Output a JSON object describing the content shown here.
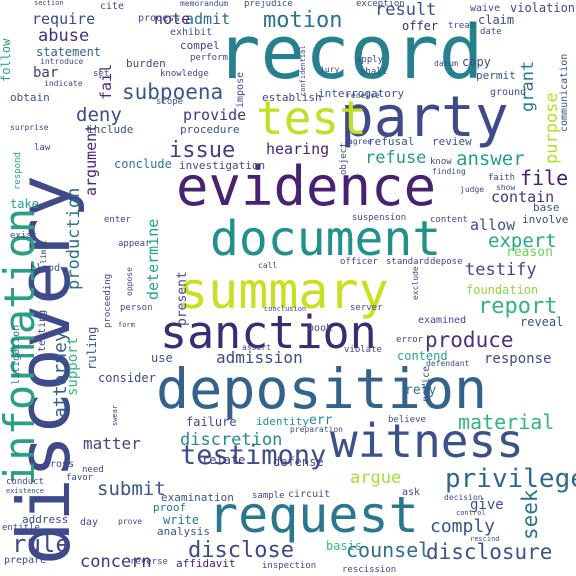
{
  "words": [
    {
      "text": "discovery",
      "color": "#3e4a89"
    },
    {
      "text": "record",
      "color": "#26818e"
    },
    {
      "text": "party",
      "color": "#3e4a89"
    },
    {
      "text": "test",
      "color": "#c2df23"
    },
    {
      "text": "evidence",
      "color": "#482173"
    },
    {
      "text": "document",
      "color": "#21918c"
    },
    {
      "text": "information",
      "color": "#2a9f86"
    },
    {
      "text": "summary",
      "color": "#c8e020"
    },
    {
      "text": "sanction",
      "color": "#3a2c73"
    },
    {
      "text": "deposition",
      "color": "#33638d"
    },
    {
      "text": "witness",
      "color": "#3b518b"
    },
    {
      "text": "request",
      "color": "#2a788e"
    },
    {
      "text": "testimony",
      "color": "#3e4c8a"
    },
    {
      "text": "privilege",
      "color": "#31688e"
    },
    {
      "text": "disclosure",
      "color": "#3b528b"
    },
    {
      "text": "disclose",
      "color": "#3f4788"
    },
    {
      "text": "motion",
      "color": "#2d708e"
    },
    {
      "text": "subpoena",
      "color": "#38588c"
    },
    {
      "text": "issue",
      "color": "#424086"
    },
    {
      "text": "answer",
      "color": "#20a386"
    },
    {
      "text": "report",
      "color": "#31b57b"
    },
    {
      "text": "produce",
      "color": "#46337e"
    },
    {
      "text": "rule",
      "color": "#3e4989"
    },
    {
      "text": "abuse",
      "color": "#46307e"
    },
    {
      "text": "deny",
      "color": "#3e4a89"
    },
    {
      "text": "attorney",
      "color": "#34608d"
    },
    {
      "text": "counsel",
      "color": "#2d718e"
    },
    {
      "text": "material",
      "color": "#34b679"
    },
    {
      "text": "seek",
      "color": "#2c728e"
    },
    {
      "text": "discretion",
      "color": "#23898e"
    },
    {
      "text": "admission",
      "color": "#3e4a89"
    },
    {
      "text": "argue",
      "color": "#a8db34"
    },
    {
      "text": "grant",
      "color": "#2a788e"
    },
    {
      "text": "result",
      "color": "#3d4e8a"
    },
    {
      "text": "file",
      "color": "#481b6d"
    },
    {
      "text": "refuse",
      "color": "#1f9e89"
    },
    {
      "text": "expert",
      "color": "#25ac82"
    },
    {
      "text": "testify",
      "color": "#3f4889"
    },
    {
      "text": "purpose",
      "color": "#b5de2b"
    },
    {
      "text": "hearing",
      "color": "#482475"
    },
    {
      "text": "matter",
      "color": "#414487"
    },
    {
      "text": "submit",
      "color": "#39568c"
    },
    {
      "text": "concern",
      "color": "#46327e"
    },
    {
      "text": "comply",
      "color": "#39558c"
    },
    {
      "text": "argument",
      "color": "#482878"
    },
    {
      "text": "fail",
      "color": "#482878"
    },
    {
      "text": "production",
      "color": "#2e6e8e"
    },
    {
      "text": "determine",
      "color": "#21a685"
    },
    {
      "text": "contain",
      "color": "#46337e"
    },
    {
      "text": "allow",
      "color": "#3d4d8a"
    },
    {
      "text": "provide",
      "color": "#46337e"
    },
    {
      "text": "admit",
      "color": "#31688e"
    },
    {
      "text": "note",
      "color": "#482576"
    },
    {
      "text": "require",
      "color": "#3e4a89"
    },
    {
      "text": "statement",
      "color": "#33638d"
    },
    {
      "text": "bar",
      "color": "#46327e"
    },
    {
      "text": "obtain",
      "color": "#3b528b"
    },
    {
      "text": "follow",
      "color": "#21a685"
    },
    {
      "text": "support",
      "color": "#35b779"
    },
    {
      "text": "present",
      "color": "#3d4e8a"
    },
    {
      "text": "conclude",
      "color": "#2a778e"
    },
    {
      "text": "identity",
      "color": "#21918c"
    },
    {
      "text": "err",
      "color": "#228b8d"
    },
    {
      "text": "failure",
      "color": "#3e4a89"
    },
    {
      "text": "relate",
      "color": "#46327e"
    },
    {
      "text": "defense",
      "color": "#3e4a89"
    },
    {
      "text": "examination",
      "color": "#39558c"
    },
    {
      "text": "proof",
      "color": "#2c738e"
    },
    {
      "text": "write",
      "color": "#2a788e"
    },
    {
      "text": "analysis",
      "color": "#3b528b"
    },
    {
      "text": "affidavit",
      "color": "#481b6d"
    },
    {
      "text": "basis",
      "color": "#35b779"
    },
    {
      "text": "give",
      "color": "#3d4e8a"
    },
    {
      "text": "response",
      "color": "#3e4a89"
    },
    {
      "text": "contend",
      "color": "#22a884"
    },
    {
      "text": "rely",
      "color": "#2a788e"
    },
    {
      "text": "consider",
      "color": "#3f4889"
    },
    {
      "text": "use",
      "color": "#3b528b"
    },
    {
      "text": "take",
      "color": "#1f9e89"
    },
    {
      "text": "procedure",
      "color": "#3b528b"
    },
    {
      "text": "investigation",
      "color": "#3e4c8a"
    },
    {
      "text": "include",
      "color": "#3b528b"
    },
    {
      "text": "interrogatory",
      "color": "#3b528b"
    },
    {
      "text": "establish",
      "color": "#3e4a89"
    },
    {
      "text": "burden",
      "color": "#3e4a89"
    },
    {
      "text": "compel",
      "color": "#414487"
    },
    {
      "text": "exhibit",
      "color": "#3b528b"
    },
    {
      "text": "offer",
      "color": "#482878"
    },
    {
      "text": "claim",
      "color": "#3e4a89"
    },
    {
      "text": "copy",
      "color": "#3e4a89"
    },
    {
      "text": "permit",
      "color": "#3b528b"
    },
    {
      "text": "foundation",
      "color": "#8fd744"
    },
    {
      "text": "reason",
      "color": "#73d056"
    },
    {
      "text": "base",
      "color": "#39558c"
    },
    {
      "text": "involve",
      "color": "#3e4a89"
    },
    {
      "text": "reveal",
      "color": "#3d4e8a"
    },
    {
      "text": "examined",
      "color": "#3e4a89"
    },
    {
      "text": "notice",
      "color": "#3b528b"
    },
    {
      "text": "violation",
      "color": "#3e4a89"
    },
    {
      "text": "communication",
      "color": "#3b528b"
    },
    {
      "text": "review",
      "color": "#3b528b"
    },
    {
      "text": "refusal",
      "color": "#3b528b"
    },
    {
      "text": "scope",
      "color": "#3b528b"
    },
    {
      "text": "waive",
      "color": "#3e4a89"
    },
    {
      "text": "exception",
      "color": "#3e4a89"
    },
    {
      "text": "prejudice",
      "color": "#3e4a89"
    },
    {
      "text": "memorandum",
      "color": "#3e4a89"
    },
    {
      "text": "cite",
      "color": "#3e4a89"
    },
    {
      "text": "process",
      "color": "#3e4a89"
    },
    {
      "text": "date",
      "color": "#3e4a89"
    },
    {
      "text": "treat",
      "color": "#3e4a89"
    },
    {
      "text": "jury",
      "color": "#3e4a89"
    },
    {
      "text": "apply",
      "color": "#3e4a89"
    },
    {
      "text": "shall",
      "color": "#3e4a89"
    },
    {
      "text": "datum",
      "color": "#3e4a89"
    },
    {
      "text": "ground",
      "color": "#3e4a89"
    },
    {
      "text": "knowledge",
      "color": "#3e4a89"
    },
    {
      "text": "perform",
      "color": "#3e4a89"
    },
    {
      "text": "set",
      "color": "#3e4a89"
    },
    {
      "text": "impose",
      "color": "#3b528b"
    },
    {
      "text": "receive",
      "color": "#3e4a89"
    },
    {
      "text": "depose",
      "color": "#3e4a89"
    },
    {
      "text": "agree",
      "color": "#3e4a89"
    },
    {
      "text": "object",
      "color": "#3e4a89"
    },
    {
      "text": "know",
      "color": "#3e4a89"
    },
    {
      "text": "finding",
      "color": "#3e4a89"
    },
    {
      "text": "faith",
      "color": "#3e4a89"
    },
    {
      "text": "show",
      "color": "#3e4a89"
    },
    {
      "text": "judge",
      "color": "#3e4a89"
    },
    {
      "text": "suspension",
      "color": "#3e4a89"
    },
    {
      "text": "content",
      "color": "#3e4a89"
    },
    {
      "text": "standard",
      "color": "#3e4a89"
    },
    {
      "text": "officer",
      "color": "#3e4a89"
    },
    {
      "text": "call",
      "color": "#3e4a89"
    },
    {
      "text": "appear",
      "color": "#3e4a89"
    },
    {
      "text": "enter",
      "color": "#3e4a89"
    },
    {
      "text": "limit",
      "color": "#3e4a89"
    },
    {
      "text": "exist",
      "color": "#3e4a89"
    },
    {
      "text": "blood",
      "color": "#3e4a89"
    },
    {
      "text": "testing",
      "color": "#3e4a89"
    },
    {
      "text": "litigation",
      "color": "#2a788e"
    },
    {
      "text": "respond",
      "color": "#2a9f86"
    },
    {
      "text": "law",
      "color": "#3e4a89"
    },
    {
      "text": "surprise",
      "color": "#3e4a89"
    },
    {
      "text": "indicate",
      "color": "#3e4a89"
    },
    {
      "text": "introduce",
      "color": "#3e4a89"
    },
    {
      "text": "section",
      "color": "#3e4a89"
    },
    {
      "text": "oppose",
      "color": "#3e4a89"
    },
    {
      "text": "ruling",
      "color": "#3b528b"
    },
    {
      "text": "proceeding",
      "color": "#3e4a89"
    },
    {
      "text": "person",
      "color": "#3e4a89"
    },
    {
      "text": "conclusion",
      "color": "#3e4a89"
    },
    {
      "text": "book",
      "color": "#3e4a89"
    },
    {
      "text": "server",
      "color": "#3e4a89"
    },
    {
      "text": "error",
      "color": "#3e4a89"
    },
    {
      "text": "assert",
      "color": "#3e4a89"
    },
    {
      "text": "violate",
      "color": "#3e4a89"
    },
    {
      "text": "defendant",
      "color": "#3e4a89"
    },
    {
      "text": "swear",
      "color": "#3e4a89"
    },
    {
      "text": "preparation",
      "color": "#3e4a89"
    },
    {
      "text": "believe",
      "color": "#3e4a89"
    },
    {
      "text": "ask",
      "color": "#3e4a89"
    },
    {
      "text": "sample",
      "color": "#3e4a89"
    },
    {
      "text": "circuit",
      "color": "#3e4a89"
    },
    {
      "text": "decision",
      "color": "#3e4a89"
    },
    {
      "text": "cross",
      "color": "#3e4a89"
    },
    {
      "text": "favor",
      "color": "#3e4a89"
    },
    {
      "text": "need",
      "color": "#3e4a89"
    },
    {
      "text": "conduct",
      "color": "#3e4a89"
    },
    {
      "text": "existence",
      "color": "#3e4a89"
    },
    {
      "text": "address",
      "color": "#3e4a89"
    },
    {
      "text": "day",
      "color": "#3e4a89"
    },
    {
      "text": "entitle",
      "color": "#3e4a89"
    },
    {
      "text": "prepare",
      "color": "#3e4a89"
    },
    {
      "text": "prove",
      "color": "#3e4a89"
    },
    {
      "text": "reverse",
      "color": "#3e4a89"
    },
    {
      "text": "inspection",
      "color": "#3e4a89"
    },
    {
      "text": "rescission",
      "color": "#3e4a89"
    },
    {
      "text": "control",
      "color": "#3e4a89"
    },
    {
      "text": "rescind",
      "color": "#3e4a89"
    },
    {
      "text": "form",
      "color": "#3e4a89"
    },
    {
      "text": "confidential",
      "color": "#3e4a89"
    },
    {
      "text": "exclude",
      "color": "#3e4a89"
    }
  ]
}
